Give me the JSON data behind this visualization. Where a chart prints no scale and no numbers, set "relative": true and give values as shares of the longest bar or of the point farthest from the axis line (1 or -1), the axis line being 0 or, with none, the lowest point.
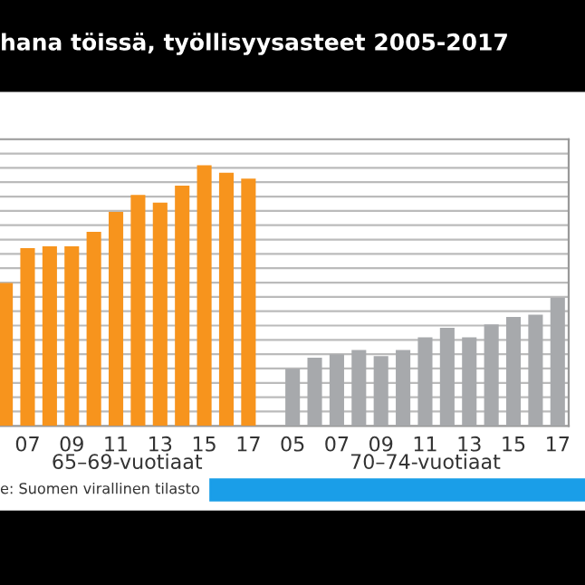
{
  "chart_data": {
    "type": "bar",
    "relative": true,
    "title": "hana töissä, työllisyysasteet 2005-2017",
    "categories": [
      null,
      "07",
      null,
      "09",
      null,
      "11",
      null,
      "13",
      null,
      "15",
      null,
      "17",
      null,
      "05",
      null,
      "07",
      null,
      "09",
      null,
      "11",
      null,
      "13",
      null,
      "15",
      null,
      "17"
    ],
    "values": [
      0.548,
      0.682,
      0.689,
      0.689,
      0.745,
      0.821,
      0.886,
      0.857,
      0.922,
      1.0,
      0.971,
      0.949,
      null,
      0.219,
      0.262,
      0.275,
      0.291,
      0.268,
      0.291,
      0.34,
      0.376,
      0.34,
      0.389,
      0.418,
      0.427,
      0.492
    ],
    "colors": [
      "#f7941d",
      "#f7941d",
      "#f7941d",
      "#f7941d",
      "#f7941d",
      "#f7941d",
      "#f7941d",
      "#f7941d",
      "#f7941d",
      "#f7941d",
      "#f7941d",
      "#f7941d",
      null,
      "#a7a9ac",
      "#a7a9ac",
      "#a7a9ac",
      "#a7a9ac",
      "#a7a9ac",
      "#a7a9ac",
      "#a7a9ac",
      "#a7a9ac",
      "#a7a9ac",
      "#a7a9ac",
      "#a7a9ac",
      "#a7a9ac",
      "#a7a9ac"
    ],
    "annotations": [
      "65–69-vuotiaat",
      "70–74-vuotiaat",
      "e: Suomen virallinen tilasto"
    ],
    "grid": "y"
  }
}
